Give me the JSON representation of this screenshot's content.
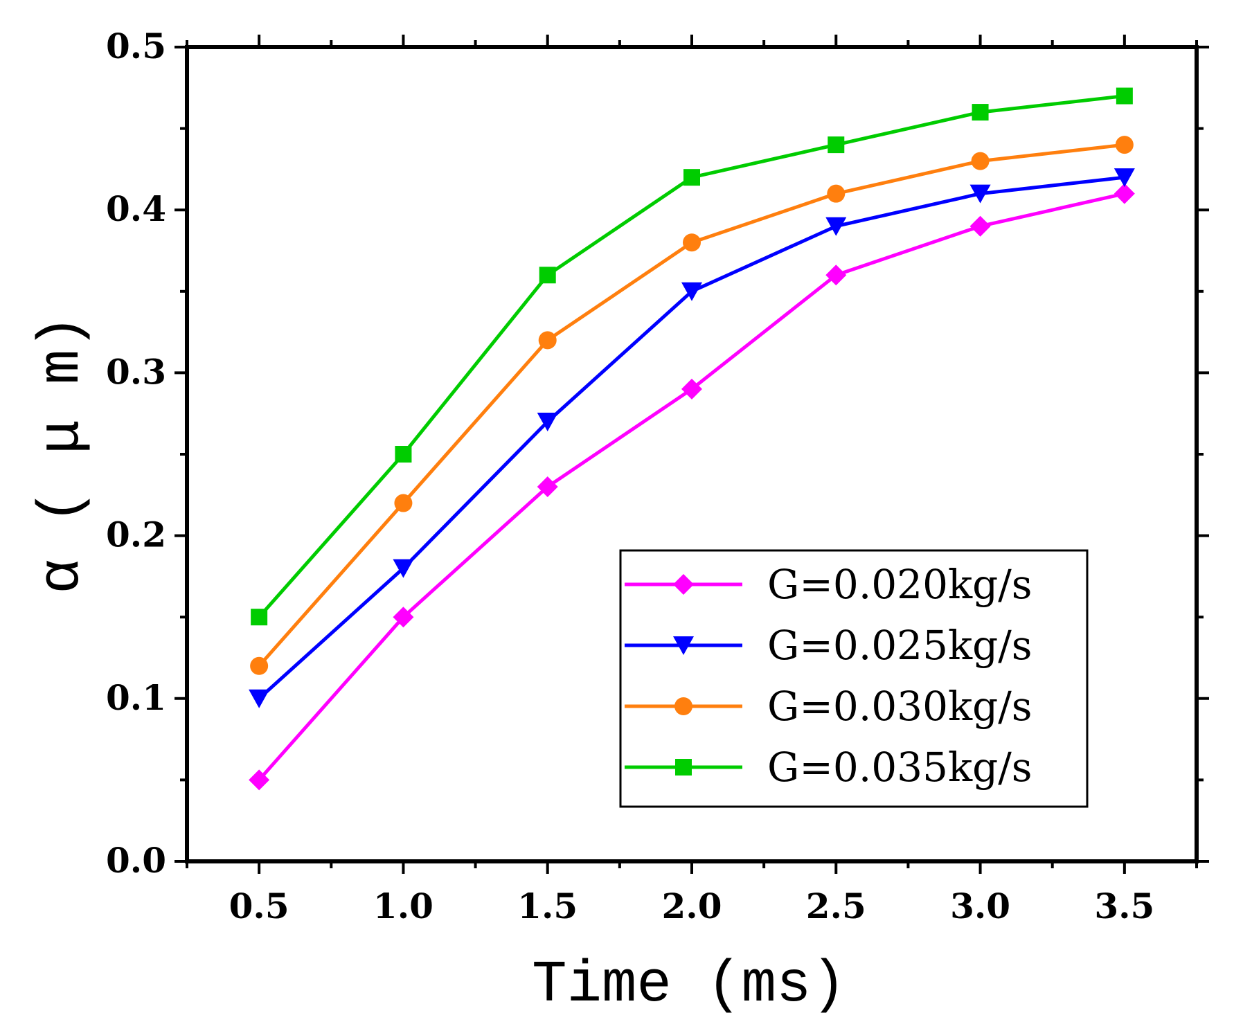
{
  "chart_data": {
    "type": "line",
    "title": "",
    "xlabel": "Time (ms)",
    "ylabel": "α ( μ m)",
    "xlim": [
      0.25,
      3.75
    ],
    "ylim": [
      0.0,
      0.5
    ],
    "x": [
      0.5,
      1.0,
      1.5,
      2.0,
      2.5,
      3.0,
      3.5
    ],
    "x_ticks": [
      "0.5",
      "1.0",
      "1.5",
      "2.0",
      "2.5",
      "3.0",
      "3.5"
    ],
    "y_ticks": [
      "0.0",
      "0.1",
      "0.2",
      "0.3",
      "0.4",
      "0.5"
    ],
    "y_tick_values": [
      0.0,
      0.1,
      0.2,
      0.3,
      0.4,
      0.5
    ],
    "legend_position": "bottom-right",
    "series": [
      {
        "name": "G=0.020kg/s",
        "color": "#ff00ff",
        "marker": "diamond",
        "values": [
          0.05,
          0.15,
          0.23,
          0.29,
          0.36,
          0.39,
          0.41
        ]
      },
      {
        "name": "G=0.025kg/s",
        "color": "#0000ff",
        "marker": "triangle-down",
        "values": [
          0.1,
          0.18,
          0.27,
          0.35,
          0.39,
          0.41,
          0.42
        ]
      },
      {
        "name": "G=0.030kg/s",
        "color": "#ff7f0e",
        "marker": "circle",
        "values": [
          0.12,
          0.22,
          0.32,
          0.38,
          0.41,
          0.43,
          0.44
        ]
      },
      {
        "name": "G=0.035kg/s",
        "color": "#00cc00",
        "marker": "square",
        "values": [
          0.15,
          0.25,
          0.36,
          0.42,
          0.44,
          0.46,
          0.47
        ]
      }
    ]
  }
}
